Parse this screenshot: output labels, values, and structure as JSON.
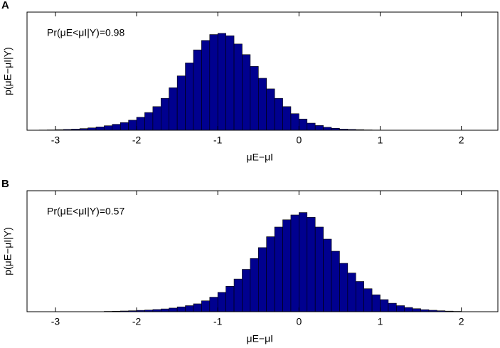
{
  "chart_data": [
    {
      "type": "histogram",
      "panel_label": "A",
      "ylabel": "p(μE−μI|Y)",
      "xlabel": "μE−μI",
      "annotation": "Pr(μE<μI|Y)=0.98",
      "color": "#00008f",
      "edgecolor": "#000000",
      "bins": [
        -3.2,
        -3.1,
        -3.0,
        -2.9,
        -2.8,
        -2.7,
        -2.6,
        -2.5,
        -2.4,
        -2.3,
        -2.2,
        -2.1,
        -2.0,
        -1.9,
        -1.8,
        -1.7,
        -1.6,
        -1.5,
        -1.4,
        -1.3,
        -1.2,
        -1.1,
        -1.0,
        -0.9,
        -0.8,
        -0.7,
        -0.6,
        -0.5,
        -0.4,
        -0.3,
        -0.2,
        -0.1,
        0.0,
        0.1,
        0.2,
        0.3,
        0.4,
        0.5,
        0.6,
        0.7,
        0.8,
        0.9,
        1.0
      ],
      "values": [
        0.002,
        0.003,
        0.005,
        0.007,
        0.01,
        0.014,
        0.02,
        0.028,
        0.038,
        0.05,
        0.065,
        0.085,
        0.11,
        0.15,
        0.2,
        0.27,
        0.36,
        0.46,
        0.57,
        0.68,
        0.76,
        0.81,
        0.82,
        0.8,
        0.73,
        0.64,
        0.54,
        0.44,
        0.35,
        0.27,
        0.2,
        0.14,
        0.095,
        0.06,
        0.04,
        0.025,
        0.016,
        0.01,
        0.007,
        0.005,
        0.003,
        0.002
      ],
      "xlim": [
        -3.35,
        2.45
      ],
      "ylim": [
        0,
        1
      ],
      "xticks": [
        -3,
        -2,
        -1,
        0,
        1,
        2
      ]
    },
    {
      "type": "histogram",
      "panel_label": "B",
      "ylabel": "p(μE−μI|Y)",
      "xlabel": "μE−μI",
      "annotation": "Pr(μE<μI|Y)=0.57",
      "color": "#00008f",
      "edgecolor": "#000000",
      "bins": [
        -2.4,
        -2.3,
        -2.2,
        -2.1,
        -2.0,
        -1.9,
        -1.8,
        -1.7,
        -1.6,
        -1.5,
        -1.4,
        -1.3,
        -1.2,
        -1.1,
        -1.0,
        -0.9,
        -0.8,
        -0.7,
        -0.6,
        -0.5,
        -0.4,
        -0.3,
        -0.2,
        -0.1,
        0.0,
        0.1,
        0.2,
        0.3,
        0.4,
        0.5,
        0.6,
        0.7,
        0.8,
        0.9,
        1.0,
        1.1,
        1.2,
        1.3,
        1.4,
        1.5,
        1.6,
        1.7,
        1.8,
        1.9,
        2.0
      ],
      "values": [
        0.003,
        0.004,
        0.006,
        0.008,
        0.011,
        0.014,
        0.018,
        0.023,
        0.03,
        0.04,
        0.05,
        0.065,
        0.09,
        0.12,
        0.16,
        0.21,
        0.27,
        0.35,
        0.44,
        0.53,
        0.62,
        0.7,
        0.76,
        0.8,
        0.82,
        0.78,
        0.7,
        0.6,
        0.5,
        0.4,
        0.32,
        0.25,
        0.19,
        0.14,
        0.1,
        0.07,
        0.05,
        0.035,
        0.025,
        0.017,
        0.012,
        0.008,
        0.005,
        0.003
      ],
      "xlim": [
        -3.35,
        2.45
      ],
      "ylim": [
        0,
        1
      ],
      "xticks": [
        -3,
        -2,
        -1,
        0,
        1,
        2
      ]
    }
  ]
}
